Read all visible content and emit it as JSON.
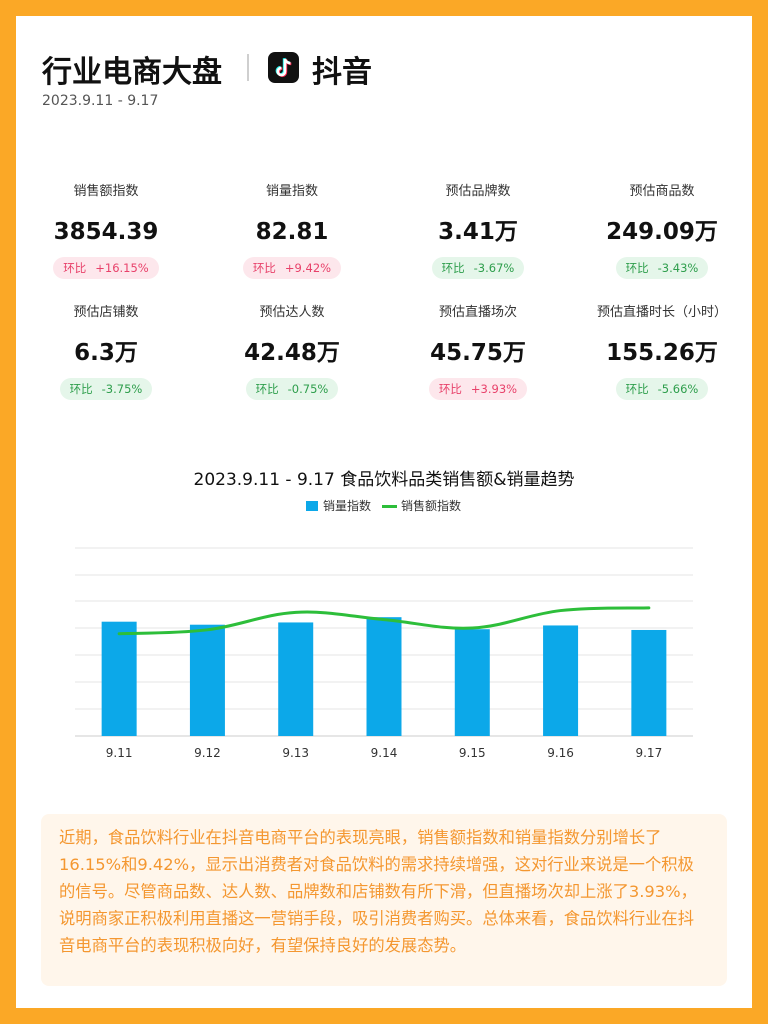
{
  "header": {
    "title": "行业电商大盘",
    "platform": "抖音",
    "platform_icon": "douyin-logo-icon",
    "date_range": "2023.9.11 - 9.17"
  },
  "metrics": [
    {
      "label": "销售额指数",
      "value": "3854.39",
      "change_label": "环比",
      "change": "+16.15%",
      "trend": "up"
    },
    {
      "label": "销量指数",
      "value": "82.81",
      "change_label": "环比",
      "change": "+9.42%",
      "trend": "up"
    },
    {
      "label": "预估品牌数",
      "value": "3.41万",
      "change_label": "环比",
      "change": "-3.67%",
      "trend": "down"
    },
    {
      "label": "预估商品数",
      "value": "249.09万",
      "change_label": "环比",
      "change": "-3.43%",
      "trend": "down"
    },
    {
      "label": "预估店铺数",
      "value": "6.3万",
      "change_label": "环比",
      "change": "-3.75%",
      "trend": "down"
    },
    {
      "label": "预估达人数",
      "value": "42.48万",
      "change_label": "环比",
      "change": "-0.75%",
      "trend": "down"
    },
    {
      "label": "预估直播场次",
      "value": "45.75万",
      "change_label": "环比",
      "change": "+3.93%",
      "trend": "up"
    },
    {
      "label": "预估直播时长（小时）",
      "value": "155.26万",
      "change_label": "环比",
      "change": "-5.66%",
      "trend": "down"
    }
  ],
  "colors": {
    "accent": "#FBA826",
    "up": "#E8416A",
    "down": "#2E9E4C",
    "bar": "#0CA8E9",
    "line": "#2DBE3A"
  },
  "chart_data": {
    "type": "bar",
    "title": "2023.9.11 - 9.17 食品饮料品类销售额&销量趋势",
    "categories": [
      "9.11",
      "9.12",
      "9.13",
      "9.14",
      "9.15",
      "9.16",
      "9.17"
    ],
    "series": [
      {
        "name": "销量指数",
        "type": "bar",
        "values": [
          76,
          74,
          75.5,
          79,
          71,
          73.5,
          70.5
        ]
      },
      {
        "name": "销售额指数",
        "type": "line",
        "values": [
          3400,
          3530,
          4110,
          3870,
          3590,
          4170,
          4260
        ]
      }
    ],
    "legend_position": "top-center",
    "grid": true,
    "y_axis_labels_visible": false,
    "ylim_bar": [
      0,
      125
    ],
    "ylim_line": [
      0,
      6250
    ]
  },
  "summary": "近期，食品饮料行业在抖音电商平台的表现亮眼，销售额指数和销量指数分别增长了16.15%和9.42%，显示出消费者对食品饮料的需求持续增强，这对行业来说是一个积极的信号。尽管商品数、达人数、品牌数和店铺数有所下滑，但直播场次却上涨了3.93%，说明商家正积极利用直播这一营销手段，吸引消费者购买。总体来看，食品饮料行业在抖音电商平台的表现积极向好，有望保持良好的发展态势。"
}
